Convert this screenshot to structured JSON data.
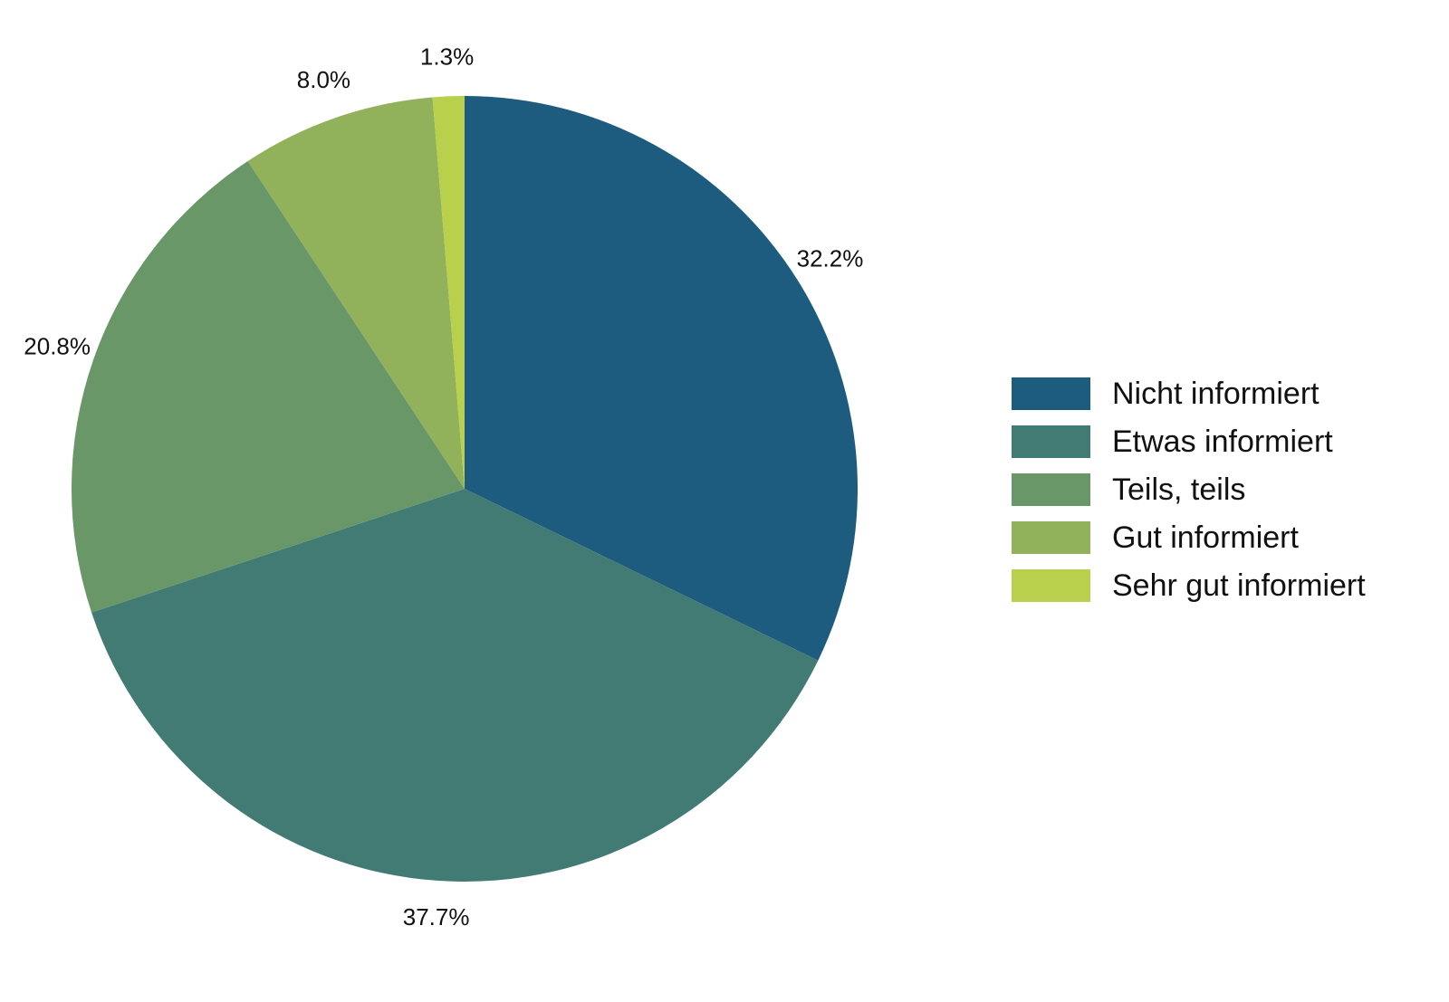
{
  "chart_data": {
    "type": "pie",
    "categories": [
      "Nicht informiert",
      "Etwas informiert",
      "Teils, teils",
      "Gut informiert",
      "Sehr gut informiert"
    ],
    "values": [
      32.2,
      37.7,
      20.8,
      8.0,
      1.3
    ],
    "value_labels": [
      "32.2%",
      "37.7%",
      "20.8%",
      "8.0%",
      "1.3%"
    ],
    "colors": [
      "#1d5c7e",
      "#427a74",
      "#699768",
      "#91b25a",
      "#b8d04b"
    ],
    "legend": "right"
  }
}
